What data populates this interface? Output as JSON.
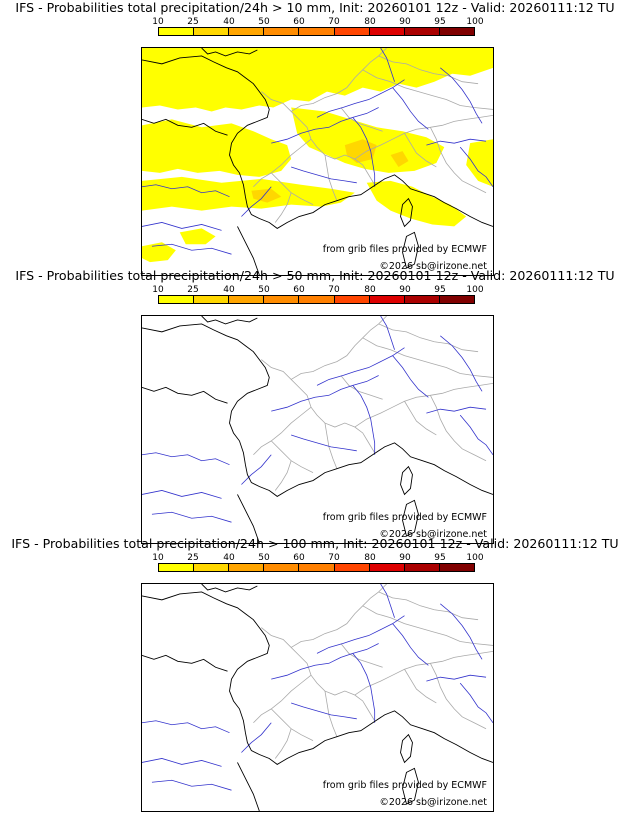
{
  "panels": [
    {
      "title": "IFS - Probabilities total precipitation/24h > 10 mm, Init: 20260101 12z - Valid: 20260111:12 TU",
      "threshold_mm": 10,
      "coverage": "widespread"
    },
    {
      "title": "IFS - Probabilities total precipitation/24h > 50 mm, Init: 20260101 12z - Valid: 20260111:12 TU",
      "threshold_mm": 50,
      "coverage": "none"
    },
    {
      "title": "IFS - Probabilities total precipitation/24h > 100 mm, Init: 20260101 12z - Valid: 20260111:12 TU",
      "threshold_mm": 100,
      "coverage": "none"
    }
  ],
  "legend": {
    "ticks": [
      "10",
      "25",
      "40",
      "50",
      "60",
      "70",
      "80",
      "90",
      "95",
      "100"
    ],
    "colors": [
      "#ffff00",
      "#ffd700",
      "#ffa500",
      "#ff8c00",
      "#ff7f00",
      "#ff4500",
      "#dd0000",
      "#aa0000",
      "#800000"
    ]
  },
  "credits": {
    "source": "from grib files provided by ECMWF",
    "copyright": "©2026 sb@irizone.net"
  },
  "colors": {
    "coast": "#000000",
    "border": "#aaaaaa",
    "river": "#3333cc",
    "rain": "#ffff00"
  }
}
